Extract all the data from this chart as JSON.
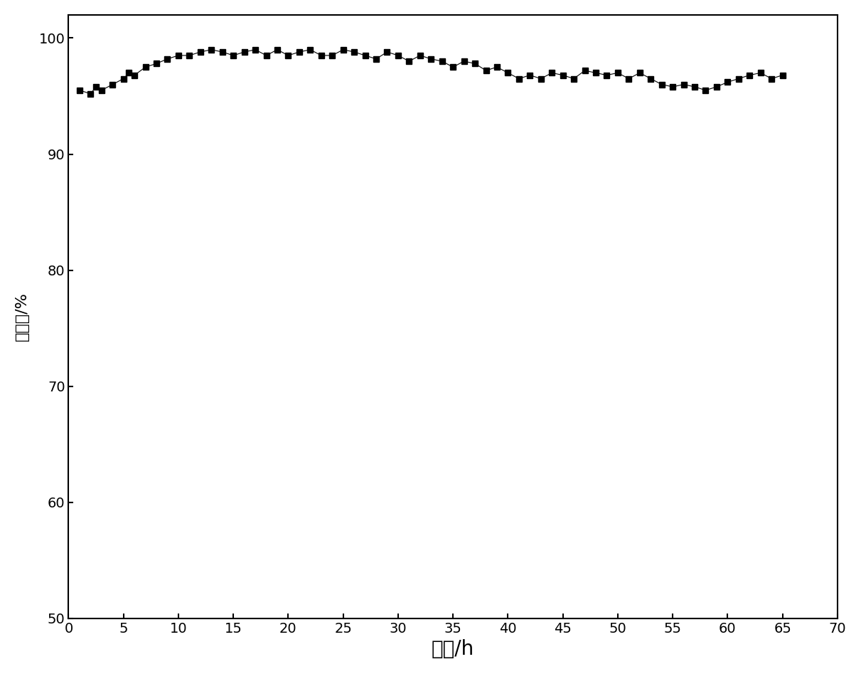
{
  "x": [
    1,
    2,
    2.5,
    3,
    4,
    5,
    5.5,
    6,
    7,
    8,
    9,
    10,
    11,
    12,
    13,
    14,
    15,
    16,
    17,
    18,
    19,
    20,
    21,
    22,
    23,
    24,
    25,
    26,
    27,
    28,
    29,
    30,
    31,
    32,
    33,
    34,
    35,
    36,
    37,
    38,
    39,
    40,
    41,
    42,
    43,
    44,
    45,
    46,
    47,
    48,
    49,
    50,
    51,
    52,
    53,
    54,
    55,
    56,
    57,
    58,
    59,
    60,
    61,
    62,
    63,
    64,
    65
  ],
  "y": [
    95.5,
    95.2,
    95.8,
    95.5,
    96.0,
    96.5,
    97.0,
    96.8,
    97.5,
    97.8,
    98.2,
    98.5,
    98.5,
    98.8,
    99.0,
    98.8,
    98.5,
    98.8,
    99.0,
    98.5,
    99.0,
    98.5,
    98.8,
    99.0,
    98.5,
    98.5,
    99.0,
    98.8,
    98.5,
    98.2,
    98.8,
    98.5,
    98.0,
    98.5,
    98.2,
    98.0,
    97.5,
    98.0,
    97.8,
    97.2,
    97.5,
    97.0,
    96.5,
    96.8,
    96.5,
    97.0,
    96.8,
    96.5,
    97.2,
    97.0,
    96.8,
    97.0,
    96.5,
    97.0,
    96.5,
    96.0,
    95.8,
    96.0,
    95.8,
    95.5,
    95.8,
    96.2,
    96.5,
    96.8,
    97.0,
    96.5,
    96.8
  ],
  "xlabel": "时间/h",
  "ylabel": "转化率/%",
  "xlim": [
    0,
    70
  ],
  "ylim": [
    50,
    102
  ],
  "xticks": [
    0,
    5,
    10,
    15,
    20,
    25,
    30,
    35,
    40,
    45,
    50,
    55,
    60,
    65,
    70
  ],
  "yticks": [
    50,
    60,
    70,
    80,
    90,
    100
  ],
  "marker_color": "#000000",
  "marker_size": 6,
  "background_color": "#ffffff",
  "xlabel_fontsize": 20,
  "ylabel_fontsize": 16,
  "tick_fontsize": 14
}
